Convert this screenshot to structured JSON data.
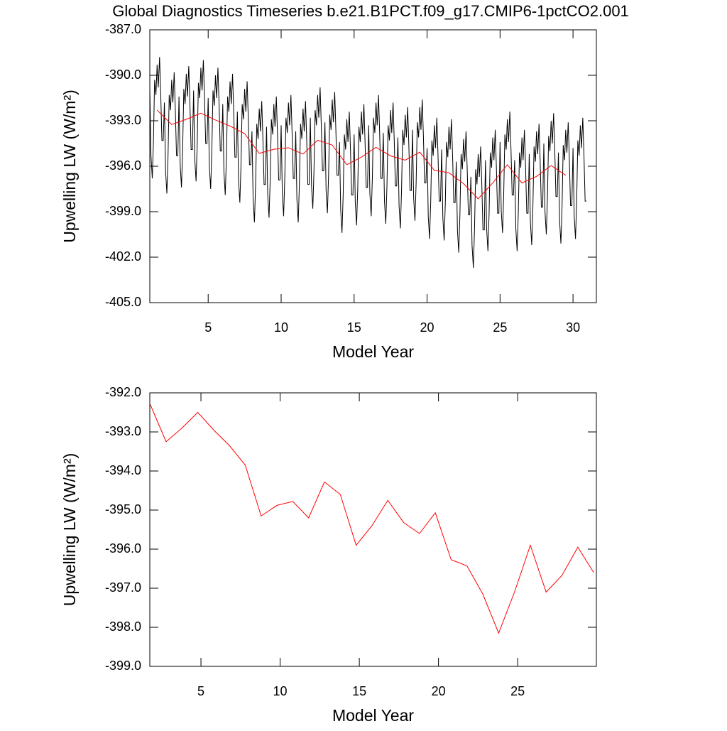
{
  "chart_data": [
    {
      "type": "line",
      "title": "Global Diagnostics Timeseries b.e21.B1PCT.f09_g17.CMIP6-1pctCO2.001",
      "xlabel": "Model Year",
      "ylabel": "Upwelling LW (W/m²)",
      "xlim": [
        1,
        31.6
      ],
      "xticks": [
        5,
        10,
        15,
        20,
        25,
        30
      ],
      "ylim": [
        -405,
        -387
      ],
      "yticks": [
        {
          "value": -405,
          "label": "-405.0"
        },
        {
          "value": -402,
          "label": "-402.0"
        },
        {
          "value": -399,
          "label": "-399.0"
        },
        {
          "value": -396,
          "label": "-396.0"
        },
        {
          "value": -393,
          "label": "-393.0"
        },
        {
          "value": -390,
          "label": "-390.0"
        },
        {
          "value": -387,
          "label": "-387.0"
        }
      ],
      "series": [
        {
          "color": "#000000",
          "x": [
            1.0,
            1.08,
            1.17,
            1.25,
            1.33,
            1.42,
            1.5,
            1.58,
            1.67,
            1.75,
            1.83,
            1.92,
            2.0,
            2.08,
            2.17,
            2.25,
            2.33,
            2.42,
            2.5,
            2.58,
            2.67,
            2.75,
            2.83,
            2.92,
            3.0,
            3.08,
            3.17,
            3.25,
            3.33,
            3.42,
            3.5,
            3.58,
            3.67,
            3.75,
            3.83,
            3.92,
            4.0,
            4.08,
            4.17,
            4.25,
            4.33,
            4.42,
            4.5,
            4.58,
            4.67,
            4.75,
            4.83,
            4.92,
            5.0,
            5.08,
            5.17,
            5.25,
            5.33,
            5.42,
            5.5,
            5.58,
            5.67,
            5.75,
            5.83,
            5.92,
            6.0,
            6.08,
            6.17,
            6.25,
            6.33,
            6.42,
            6.5,
            6.58,
            6.67,
            6.75,
            6.83,
            6.92,
            7.0,
            7.08,
            7.17,
            7.25,
            7.33,
            7.42,
            7.5,
            7.58,
            7.67,
            7.75,
            7.83,
            7.92,
            8.0,
            8.08,
            8.17,
            8.25,
            8.33,
            8.42,
            8.5,
            8.58,
            8.67,
            8.75,
            8.83,
            8.92,
            9.0,
            9.08,
            9.17,
            9.25,
            9.33,
            9.42,
            9.5,
            9.58,
            9.67,
            9.75,
            9.83,
            9.92,
            10.0,
            10.08,
            10.17,
            10.25,
            10.33,
            10.42,
            10.5,
            10.58,
            10.67,
            10.75,
            10.83,
            10.92,
            11.0,
            11.08,
            11.17,
            11.25,
            11.33,
            11.42,
            11.5,
            11.58,
            11.67,
            11.75,
            11.83,
            11.92,
            12.0,
            12.08,
            12.17,
            12.25,
            12.33,
            12.42,
            12.5,
            12.58,
            12.67,
            12.75,
            12.83,
            12.92,
            13.0,
            13.08,
            13.17,
            13.25,
            13.33,
            13.42,
            13.5,
            13.58,
            13.67,
            13.75,
            13.83,
            13.92,
            14.0,
            14.08,
            14.17,
            14.25,
            14.33,
            14.42,
            14.5,
            14.58,
            14.67,
            14.75,
            14.83,
            14.92,
            15.0,
            15.08,
            15.17,
            15.25,
            15.33,
            15.42,
            15.5,
            15.58,
            15.67,
            15.75,
            15.83,
            15.92,
            16.0,
            16.08,
            16.17,
            16.25,
            16.33,
            16.42,
            16.5,
            16.58,
            16.67,
            16.75,
            16.83,
            16.92,
            17.0,
            17.08,
            17.17,
            17.25,
            17.33,
            17.42,
            17.5,
            17.58,
            17.67,
            17.75,
            17.83,
            17.92,
            18.0,
            18.08,
            18.17,
            18.25,
            18.33,
            18.42,
            18.5,
            18.58,
            18.67,
            18.75,
            18.83,
            18.92,
            19.0,
            19.08,
            19.17,
            19.25,
            19.33,
            19.42,
            19.5,
            19.58,
            19.67,
            19.75,
            19.83,
            19.92,
            20.0,
            20.08,
            20.17,
            20.25,
            20.33,
            20.42,
            20.5,
            20.58,
            20.67,
            20.75,
            20.83,
            20.92,
            21.0,
            21.08,
            21.17,
            21.25,
            21.33,
            21.42,
            21.5,
            21.58,
            21.67,
            21.75,
            21.83,
            21.92,
            22.0,
            22.08,
            22.17,
            22.25,
            22.33,
            22.42,
            22.5,
            22.58,
            22.67,
            22.75,
            22.83,
            22.92,
            23.0,
            23.08,
            23.17,
            23.25,
            23.33,
            23.42,
            23.5,
            23.58,
            23.67,
            23.75,
            23.83,
            23.92,
            24.0,
            24.08,
            24.17,
            24.25,
            24.33,
            24.42,
            24.5,
            24.58,
            24.67,
            24.75,
            24.83,
            24.92,
            25.0,
            25.08,
            25.17,
            25.25,
            25.33,
            25.42,
            25.5,
            25.58,
            25.67,
            25.75,
            25.83,
            25.92,
            26.0,
            26.08,
            26.17,
            26.25,
            26.33,
            26.42,
            26.5,
            26.58,
            26.67,
            26.75,
            26.83,
            26.92,
            27.0,
            27.08,
            27.17,
            27.25,
            27.33,
            27.42,
            27.5,
            27.58,
            27.67,
            27.75,
            27.83,
            27.92,
            28.0,
            28.08,
            28.17,
            28.25,
            28.33,
            28.42,
            28.5,
            28.58,
            28.67,
            28.75,
            28.83,
            28.92,
            29.0,
            29.08,
            29.17,
            29.25,
            29.33,
            29.42,
            29.5,
            29.58,
            29.67,
            29.75,
            29.83,
            29.92,
            30.0,
            30.08,
            30.17,
            30.25,
            30.33,
            30.42,
            30.5,
            30.58,
            30.67,
            30.75,
            30.83,
            30.92
          ],
          "values": [
            -390.8,
            -395.3,
            -396.8,
            -394.3,
            -390.3,
            -391.3,
            -389.3,
            -390.8,
            -388.8,
            -391.3,
            -394.3,
            -394.3,
            -391.8,
            -396.3,
            -397.8,
            -395.3,
            -391.3,
            -392.3,
            -390.3,
            -391.8,
            -389.8,
            -392.3,
            -395.3,
            -395.3,
            -391.4,
            -395.9,
            -397.4,
            -394.9,
            -390.9,
            -391.9,
            -389.9,
            -391.4,
            -389.4,
            -391.9,
            -394.9,
            -394.9,
            -391.0,
            -395.5,
            -397.0,
            -394.5,
            -390.5,
            -391.5,
            -389.5,
            -391.0,
            -389.0,
            -391.5,
            -394.5,
            -394.5,
            -391.5,
            -396.0,
            -397.5,
            -395.0,
            -391.0,
            -392.0,
            -390.0,
            -391.5,
            -389.5,
            -392.0,
            -395.0,
            -395.0,
            -391.9,
            -396.4,
            -397.9,
            -395.4,
            -391.4,
            -392.4,
            -390.4,
            -391.9,
            -389.9,
            -392.4,
            -395.4,
            -395.4,
            -392.4,
            -396.9,
            -398.4,
            -395.9,
            -391.9,
            -392.9,
            -390.9,
            -392.4,
            -390.4,
            -392.9,
            -395.9,
            -395.9,
            -393.7,
            -398.2,
            -399.7,
            -397.2,
            -393.2,
            -394.2,
            -392.2,
            -393.7,
            -391.7,
            -394.2,
            -397.2,
            -397.2,
            -393.4,
            -397.9,
            -399.4,
            -396.9,
            -392.9,
            -393.9,
            -391.9,
            -393.4,
            -391.4,
            -393.9,
            -396.9,
            -396.9,
            -393.3,
            -397.8,
            -399.3,
            -396.8,
            -392.8,
            -393.8,
            -391.8,
            -393.3,
            -391.3,
            -393.8,
            -396.8,
            -396.8,
            -393.7,
            -398.2,
            -399.7,
            -397.2,
            -393.2,
            -394.2,
            -392.2,
            -393.7,
            -391.7,
            -394.2,
            -397.2,
            -397.2,
            -392.8,
            -397.3,
            -398.8,
            -396.3,
            -392.3,
            -393.3,
            -391.3,
            -392.8,
            -390.8,
            -393.3,
            -396.3,
            -396.3,
            -393.1,
            -397.6,
            -399.1,
            -396.6,
            -392.6,
            -393.6,
            -391.6,
            -393.1,
            -391.1,
            -393.6,
            -396.6,
            -396.6,
            -394.4,
            -398.9,
            -400.4,
            -397.9,
            -393.9,
            -394.9,
            -392.9,
            -394.4,
            -392.4,
            -394.9,
            -397.9,
            -397.9,
            -393.9,
            -398.4,
            -399.9,
            -397.4,
            -393.4,
            -394.4,
            -392.4,
            -393.9,
            -391.9,
            -394.4,
            -397.4,
            -397.4,
            -393.3,
            -397.8,
            -399.3,
            -396.8,
            -392.8,
            -393.8,
            -391.8,
            -393.3,
            -391.3,
            -393.8,
            -396.8,
            -396.8,
            -393.8,
            -398.3,
            -399.8,
            -397.3,
            -393.3,
            -394.3,
            -392.3,
            -393.8,
            -391.8,
            -394.3,
            -397.3,
            -397.3,
            -394.1,
            -398.6,
            -400.1,
            -397.6,
            -393.6,
            -394.6,
            -392.6,
            -394.1,
            -392.1,
            -394.6,
            -397.6,
            -397.6,
            -393.6,
            -398.1,
            -399.6,
            -397.1,
            -393.1,
            -394.1,
            -392.1,
            -393.6,
            -391.6,
            -394.1,
            -397.1,
            -397.1,
            -394.8,
            -399.3,
            -400.8,
            -398.3,
            -394.3,
            -395.3,
            -393.3,
            -394.8,
            -392.8,
            -395.3,
            -398.3,
            -398.3,
            -394.9,
            -399.4,
            -400.9,
            -398.4,
            -394.4,
            -395.4,
            -393.4,
            -394.9,
            -392.9,
            -395.4,
            -398.4,
            -398.4,
            -395.7,
            -400.2,
            -401.7,
            -399.2,
            -395.2,
            -396.2,
            -394.2,
            -395.7,
            -393.7,
            -396.2,
            -399.2,
            -399.2,
            -396.7,
            -401.2,
            -402.7,
            -400.2,
            -396.2,
            -397.2,
            -395.2,
            -396.7,
            -394.7,
            -397.2,
            -400.2,
            -400.2,
            -395.6,
            -400.1,
            -401.6,
            -399.1,
            -395.1,
            -396.1,
            -394.1,
            -395.6,
            -393.6,
            -396.1,
            -399.1,
            -399.1,
            -394.4,
            -398.9,
            -400.4,
            -397.9,
            -393.9,
            -394.9,
            -392.9,
            -394.4,
            -392.4,
            -394.9,
            -397.9,
            -397.9,
            -395.6,
            -400.1,
            -401.6,
            -399.1,
            -395.1,
            -396.1,
            -394.1,
            -395.6,
            -393.6,
            -396.1,
            -399.1,
            -399.1,
            -395.2,
            -399.7,
            -401.2,
            -398.7,
            -394.7,
            -395.7,
            -393.7,
            -395.2,
            -393.2,
            -395.7,
            -398.7,
            -398.7,
            -394.5,
            -399.0,
            -400.5,
            -398.0,
            -394.0,
            -395.0,
            -393.0,
            -394.5,
            -392.5,
            -395.0,
            -398.0,
            -398.0,
            -395.1,
            -399.6,
            -401.1,
            -398.6,
            -394.6,
            -395.6,
            -393.6,
            -395.1,
            -393.1,
            -395.6,
            -398.6,
            -398.6,
            -394.8,
            -399.3,
            -400.8,
            -398.3,
            -394.3,
            -395.3,
            -393.3,
            -394.8,
            -392.8,
            -395.3,
            -398.3,
            -398.3
          ]
        },
        {
          "color": "#ff0000",
          "x": [
            1.5,
            2.5,
            3.5,
            4.5,
            5.5,
            6.5,
            7.5,
            8.5,
            9.5,
            10.5,
            11.5,
            12.5,
            13.5,
            14.5,
            15.5,
            16.5,
            17.5,
            18.5,
            19.5,
            20.5,
            21.5,
            22.5,
            23.5,
            24.5,
            25.5,
            26.5,
            27.5,
            28.5,
            29.5
          ],
          "values": [
            -392.3,
            -393.25,
            -392.9,
            -392.5,
            -392.95,
            -393.35,
            -393.85,
            -395.15,
            -394.88,
            -394.78,
            -395.2,
            -394.28,
            -394.6,
            -395.9,
            -395.4,
            -394.75,
            -395.32,
            -395.6,
            -395.07,
            -396.27,
            -396.43,
            -397.15,
            -398.15,
            -397.1,
            -395.9,
            -397.1,
            -396.67,
            -395.95,
            -396.6
          ]
        }
      ]
    },
    {
      "type": "line",
      "xlabel": "Model Year",
      "ylabel": "Upwelling LW (W/m²)",
      "xlim": [
        1.77,
        29.97
      ],
      "xticks": [
        5,
        10,
        15,
        20,
        25
      ],
      "ylim": [
        -399,
        -392
      ],
      "yticks": [
        {
          "value": -399,
          "label": "-399.0"
        },
        {
          "value": -398,
          "label": "-398.0"
        },
        {
          "value": -397,
          "label": "-397.0"
        },
        {
          "value": -396,
          "label": "-396.0"
        },
        {
          "value": -395,
          "label": "-395.0"
        },
        {
          "value": -394,
          "label": "-394.0"
        },
        {
          "value": -393,
          "label": "-393.0"
        },
        {
          "value": -392,
          "label": "-392.0"
        }
      ],
      "series": [
        {
          "color": "#ff0000",
          "x": [
            1.8,
            2.8,
            3.8,
            4.8,
            5.8,
            6.8,
            7.8,
            8.8,
            9.8,
            10.8,
            11.8,
            12.8,
            13.8,
            14.8,
            15.8,
            16.8,
            17.8,
            18.8,
            19.8,
            20.8,
            21.8,
            22.8,
            23.8,
            24.8,
            25.8,
            26.8,
            27.8,
            28.8,
            29.8
          ],
          "values": [
            -392.3,
            -393.25,
            -392.9,
            -392.5,
            -392.95,
            -393.35,
            -393.85,
            -395.15,
            -394.88,
            -394.78,
            -395.2,
            -394.28,
            -394.6,
            -395.9,
            -395.4,
            -394.75,
            -395.32,
            -395.6,
            -395.07,
            -396.27,
            -396.43,
            -397.15,
            -398.15,
            -397.1,
            -395.9,
            -397.1,
            -396.67,
            -395.95,
            -396.6
          ]
        }
      ]
    }
  ]
}
